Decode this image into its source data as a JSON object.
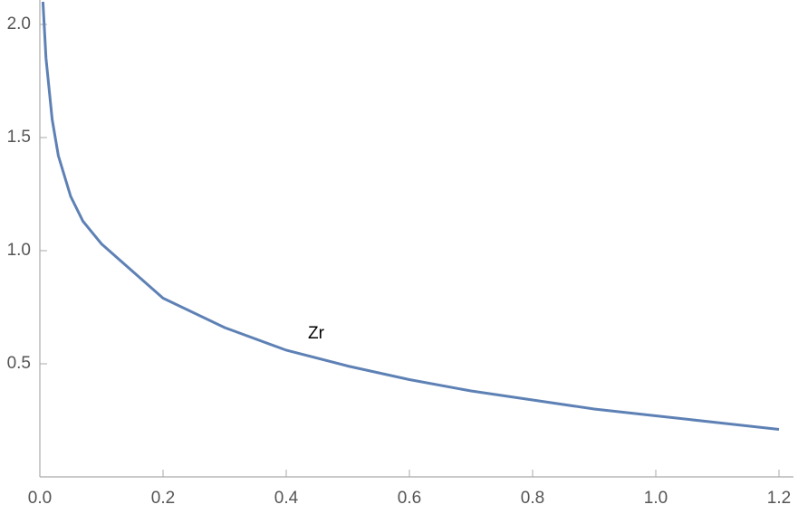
{
  "chart_data": {
    "type": "line",
    "x": [
      0.005,
      0.01,
      0.02,
      0.03,
      0.05,
      0.07,
      0.1,
      0.2,
      0.3,
      0.4,
      0.5,
      0.6,
      0.7,
      0.8,
      0.9,
      1.0,
      1.1,
      1.2
    ],
    "series": [
      {
        "name": "Zr",
        "color": "#5e81b5",
        "values": [
          2.1,
          1.85,
          1.58,
          1.42,
          1.24,
          1.13,
          1.03,
          0.79,
          0.66,
          0.56,
          0.49,
          0.43,
          0.38,
          0.34,
          0.3,
          0.27,
          0.24,
          0.21
        ]
      }
    ],
    "xlim": [
      0,
      1.2
    ],
    "ylim": [
      0,
      2.1
    ],
    "xticks": [
      {
        "value": 0,
        "label": "0.0"
      },
      0.2,
      0.4,
      0.6,
      0.8,
      {
        "value": 1,
        "label": "1.0"
      },
      1.2
    ],
    "yticks": [
      0.5,
      {
        "value": 1,
        "label": "1.0"
      },
      1.5,
      {
        "value": 2,
        "label": "2.0"
      }
    ]
  }
}
